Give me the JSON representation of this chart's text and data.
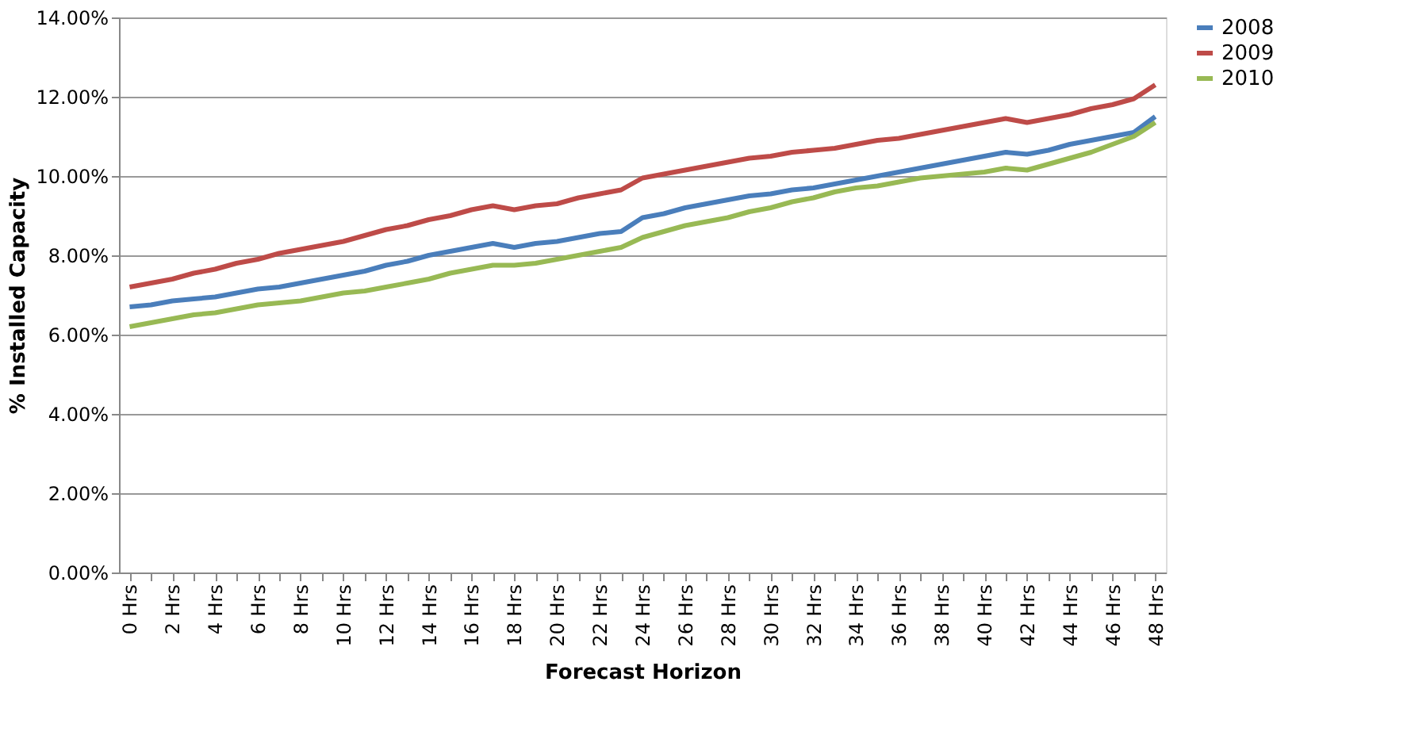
{
  "chart_data": {
    "type": "line",
    "xlabel": "Forecast Horizon",
    "ylabel": "% Installed Capacity",
    "categories": [
      "0 Hrs",
      null,
      "2 Hrs",
      null,
      "4 Hrs",
      null,
      "6 Hrs",
      null,
      "8 Hrs",
      null,
      "10 Hrs",
      null,
      "12 Hrs",
      null,
      "14 Hrs",
      null,
      "16 Hrs",
      null,
      "18 Hrs",
      null,
      "20 Hrs",
      null,
      "22 Hrs",
      null,
      "24 Hrs",
      null,
      "26 Hrs",
      null,
      "28 Hrs",
      null,
      "30 Hrs",
      null,
      "32 Hrs",
      null,
      "34 Hrs",
      null,
      "36 Hrs",
      null,
      "38 Hrs",
      null,
      "40 Hrs",
      null,
      "42 Hrs",
      null,
      "44 Hrs",
      null,
      "46 Hrs",
      null,
      "48 Hrs"
    ],
    "series": [
      {
        "name": "2008",
        "color": "#4a7ebb",
        "values": [
          6.7,
          6.75,
          6.85,
          6.9,
          6.95,
          7.05,
          7.15,
          7.2,
          7.3,
          7.4,
          7.5,
          7.6,
          7.75,
          7.85,
          8.0,
          8.1,
          8.2,
          8.3,
          8.2,
          8.3,
          8.35,
          8.45,
          8.55,
          8.6,
          8.95,
          9.05,
          9.2,
          9.3,
          9.4,
          9.5,
          9.55,
          9.65,
          9.7,
          9.8,
          9.9,
          10.0,
          10.1,
          10.2,
          10.3,
          10.4,
          10.5,
          10.6,
          10.55,
          10.65,
          10.8,
          10.9,
          11.0,
          11.1,
          11.5
        ]
      },
      {
        "name": "2009",
        "color": "#be4b48",
        "values": [
          7.2,
          7.3,
          7.4,
          7.55,
          7.65,
          7.8,
          7.9,
          8.05,
          8.15,
          8.25,
          8.35,
          8.5,
          8.65,
          8.75,
          8.9,
          9.0,
          9.15,
          9.25,
          9.15,
          9.25,
          9.3,
          9.45,
          9.55,
          9.65,
          9.95,
          10.05,
          10.15,
          10.25,
          10.35,
          10.45,
          10.5,
          10.6,
          10.65,
          10.7,
          10.8,
          10.9,
          10.95,
          11.05,
          11.15,
          11.25,
          11.35,
          11.45,
          11.35,
          11.45,
          11.55,
          11.7,
          11.8,
          11.95,
          12.3
        ]
      },
      {
        "name": "2010",
        "color": "#98b954",
        "values": [
          6.2,
          6.3,
          6.4,
          6.5,
          6.55,
          6.65,
          6.75,
          6.8,
          6.85,
          6.95,
          7.05,
          7.1,
          7.2,
          7.3,
          7.4,
          7.55,
          7.65,
          7.75,
          7.75,
          7.8,
          7.9,
          8.0,
          8.1,
          8.2,
          8.45,
          8.6,
          8.75,
          8.85,
          8.95,
          9.1,
          9.2,
          9.35,
          9.45,
          9.6,
          9.7,
          9.75,
          9.85,
          9.95,
          10.0,
          10.05,
          10.1,
          10.2,
          10.15,
          10.3,
          10.45,
          10.6,
          10.8,
          11.0,
          11.35
        ]
      }
    ],
    "ylim": [
      0,
      14
    ],
    "yticks": [
      {
        "value": 0,
        "label": "0.00%"
      },
      {
        "value": 2,
        "label": "2.00%"
      },
      {
        "value": 4,
        "label": "4.00%"
      },
      {
        "value": 6,
        "label": "6.00%"
      },
      {
        "value": 8,
        "label": "8.00%"
      },
      {
        "value": 10,
        "label": "10.00%"
      },
      {
        "value": 12,
        "label": "12.00%"
      },
      {
        "value": 14,
        "label": "14.00%"
      }
    ],
    "grid": "y",
    "legend": "right",
    "marker": "none",
    "line_style": "solid"
  }
}
